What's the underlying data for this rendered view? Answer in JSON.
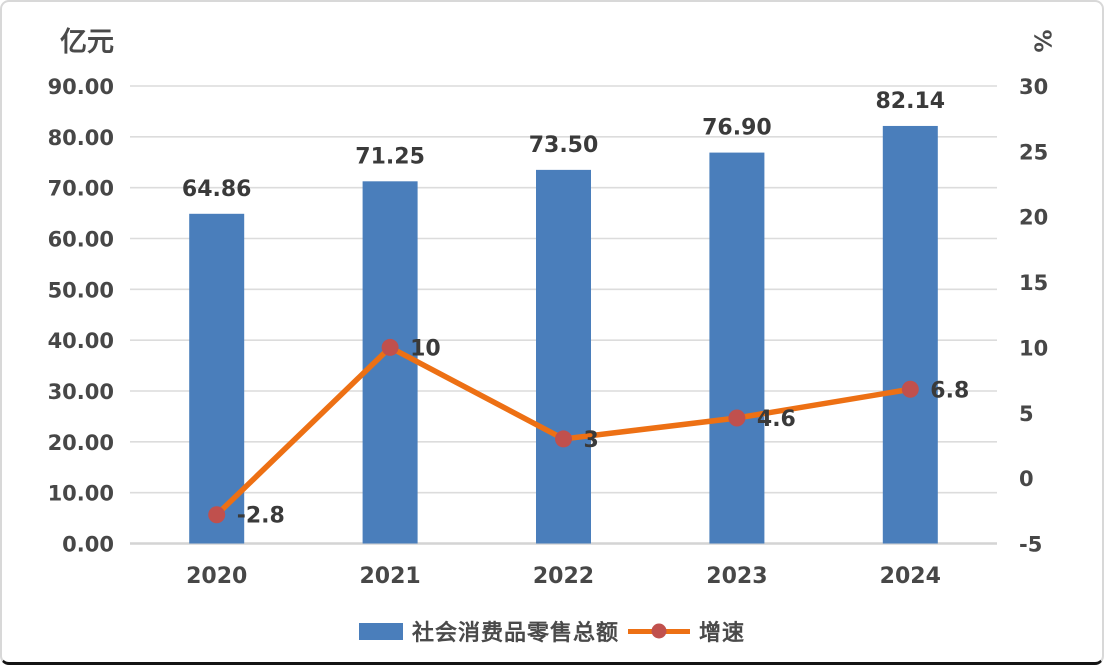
{
  "chart_data": {
    "type": "combo",
    "categories": [
      "2020",
      "2021",
      "2022",
      "2023",
      "2024"
    ],
    "series": [
      {
        "name": "社会消费品零售总额",
        "chart_type": "bar",
        "axis": "left",
        "values": [
          64.86,
          71.25,
          73.5,
          76.9,
          82.14
        ],
        "data_labels": [
          "64.86",
          "71.25",
          "73.50",
          "76.90",
          "82.14"
        ],
        "color": "#4A7EBB"
      },
      {
        "name": "增速",
        "chart_type": "line",
        "axis": "right",
        "values": [
          -2.8,
          10,
          3,
          4.6,
          6.8
        ],
        "data_labels": [
          "-2.8",
          "10",
          "3",
          "4.6",
          "6.8"
        ],
        "line_color": "#ED7014",
        "marker_color": "#C0504D"
      }
    ],
    "left_axis": {
      "title": "亿元",
      "min": 0,
      "max": 90,
      "step": 10,
      "tick_labels": [
        "0.00",
        "10.00",
        "20.00",
        "30.00",
        "40.00",
        "50.00",
        "60.00",
        "70.00",
        "80.00",
        "90.00"
      ]
    },
    "right_axis": {
      "title": "%",
      "min": -5,
      "max": 30,
      "step": 5,
      "tick_labels": [
        "-5",
        "0",
        "5",
        "10",
        "15",
        "20",
        "25",
        "30"
      ]
    },
    "gridlines": {
      "show": true,
      "color": "#DCDCDC",
      "axis_line_color": "#D4D4D4"
    },
    "text_colors": {
      "tick": "#474747",
      "data_label": "#3A3A3A"
    },
    "legend_position": "bottom"
  }
}
